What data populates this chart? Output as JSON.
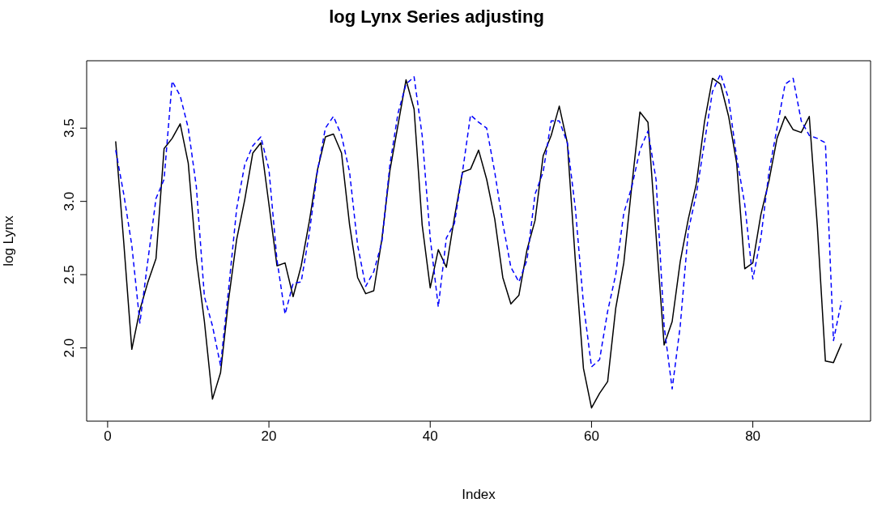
{
  "chart_data": {
    "type": "line",
    "title": "log Lynx Series adjusting",
    "xlabel": "Index",
    "ylabel": "log Lynx",
    "x": [
      1,
      2,
      3,
      4,
      5,
      6,
      7,
      8,
      9,
      10,
      11,
      12,
      13,
      14,
      15,
      16,
      17,
      18,
      19,
      20,
      21,
      22,
      23,
      24,
      25,
      26,
      27,
      28,
      29,
      30,
      31,
      32,
      33,
      34,
      35,
      36,
      37,
      38,
      39,
      40,
      41,
      42,
      43,
      44,
      45,
      46,
      47,
      48,
      49,
      50,
      51,
      52,
      53,
      54,
      55,
      56,
      57,
      58,
      59,
      60,
      61,
      62,
      63,
      64,
      65,
      66,
      67,
      68,
      69,
      70,
      71,
      72,
      73,
      74,
      75,
      76,
      77,
      78,
      79,
      80,
      81,
      82,
      83,
      84,
      85,
      86,
      87,
      88,
      89,
      90,
      91
    ],
    "series": [
      {
        "color": "#000000",
        "line_style": "solid",
        "values": [
          3.41,
          2.72,
          1.99,
          2.26,
          2.45,
          2.61,
          3.36,
          3.43,
          3.53,
          3.26,
          2.61,
          2.18,
          1.65,
          1.83,
          2.33,
          2.74,
          3.01,
          3.33,
          3.4,
          2.98,
          2.56,
          2.58,
          2.35,
          2.56,
          2.86,
          3.21,
          3.44,
          3.46,
          3.33,
          2.84,
          2.48,
          2.37,
          2.39,
          2.74,
          3.21,
          3.52,
          3.83,
          3.63,
          2.84,
          2.41,
          2.67,
          2.55,
          2.89,
          3.2,
          3.22,
          3.35,
          3.15,
          2.88,
          2.48,
          2.3,
          2.36,
          2.67,
          2.87,
          3.31,
          3.45,
          3.65,
          3.4,
          2.59,
          1.86,
          1.59,
          1.69,
          1.77,
          2.27,
          2.58,
          3.11,
          3.61,
          3.54,
          2.77,
          2.02,
          2.18,
          2.59,
          2.88,
          3.12,
          3.54,
          3.84,
          3.8,
          3.58,
          3.26,
          2.54,
          2.58,
          2.91,
          3.14,
          3.43,
          3.58,
          3.49,
          3.47,
          3.58,
          2.83,
          1.91,
          1.9,
          2.03
        ]
      },
      {
        "color": "#0000ff",
        "line_style": "dashed",
        "values": [
          3.35,
          3.05,
          2.7,
          2.17,
          2.6,
          3.02,
          3.15,
          3.82,
          3.72,
          3.5,
          3.1,
          2.35,
          2.15,
          1.88,
          2.4,
          2.95,
          3.25,
          3.38,
          3.44,
          3.22,
          2.6,
          2.23,
          2.44,
          2.45,
          2.78,
          3.2,
          3.5,
          3.58,
          3.45,
          3.2,
          2.7,
          2.42,
          2.52,
          2.72,
          3.25,
          3.6,
          3.8,
          3.85,
          3.45,
          2.75,
          2.28,
          2.75,
          2.85,
          3.2,
          3.59,
          3.54,
          3.5,
          3.2,
          2.85,
          2.55,
          2.45,
          2.6,
          3.05,
          3.2,
          3.55,
          3.55,
          3.4,
          2.95,
          2.3,
          1.87,
          1.92,
          2.25,
          2.5,
          2.92,
          3.1,
          3.35,
          3.48,
          3.15,
          2.15,
          1.72,
          2.15,
          2.8,
          3.05,
          3.4,
          3.75,
          3.87,
          3.7,
          3.3,
          2.98,
          2.47,
          2.75,
          3.2,
          3.5,
          3.8,
          3.84,
          3.55,
          3.45,
          3.43,
          3.4,
          2.05,
          2.32
        ]
      }
    ],
    "xlim": [
      -2.6,
      94.6
    ],
    "xticks": [
      0,
      20,
      40,
      60,
      80
    ],
    "ylim": [
      1.5,
      3.96
    ],
    "yticks": [
      {
        "value": 2,
        "label": "2.0"
      },
      {
        "value": 2.5,
        "label": "2.5"
      },
      {
        "value": 3,
        "label": "3.0"
      },
      {
        "value": 3.5,
        "label": "3.5"
      }
    ],
    "grid": false,
    "legend": false,
    "marker": "none"
  }
}
